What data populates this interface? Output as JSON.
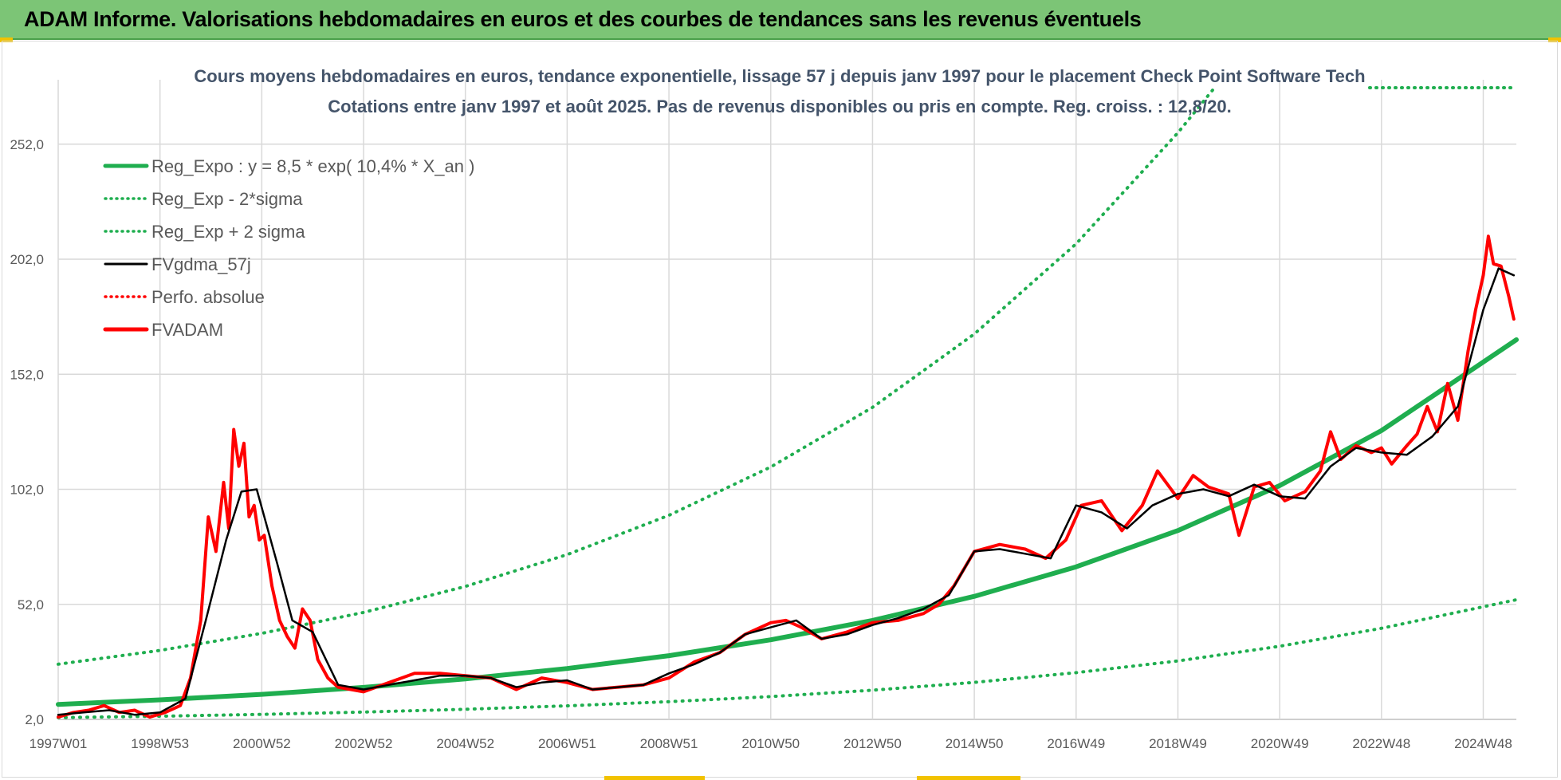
{
  "header": {
    "title": "ADAM Informe. Valorisations hebdomadaires en euros et des courbes de tendances sans les revenus éventuels"
  },
  "colors": {
    "header_bg": "#7cc576",
    "accent_yellow": "#f2c200",
    "reg_green": "#1fae4f",
    "fvgdma_black": "#000000",
    "fvadam_red": "#ff0000"
  },
  "chart_data": {
    "type": "line",
    "subtitle_line1": "Cours moyens hebdomadaires en euros, tendance exponentielle, lissage 57 j depuis janv 1997  pour le placement Check Point Software Tech",
    "subtitle_line2": "Cotations entre janv 1997 et août 2025.  Pas de revenus disponibles ou pris en compte. Reg. croiss. : 12,8/20.",
    "ylim": [
      2,
      280
    ],
    "y_ticks": [
      2.0,
      52.0,
      102.0,
      152.0,
      202.0,
      252.0
    ],
    "y_tick_labels": [
      "2,0",
      "52,0",
      "102,0",
      "152,0",
      "202,0",
      "252,0"
    ],
    "xlim": [
      1997.0,
      2025.65
    ],
    "x_ticks": [
      1997.0,
      1999.0,
      2001.0,
      2003.0,
      2005.0,
      2007.0,
      2009.0,
      2011.0,
      2013.0,
      2015.0,
      2017.0,
      2019.0,
      2021.0,
      2023.0,
      2025.0
    ],
    "x_tick_labels": [
      "1997W01",
      "1998W53",
      "2000W52",
      "2002W52",
      "2004W52",
      "2006W51",
      "2008W51",
      "2010W50",
      "2012W50",
      "2014W50",
      "2016W49",
      "2018W49",
      "2020W49",
      "2022W48",
      "2024W48"
    ],
    "legend": {
      "position": "top-left",
      "entries": [
        {
          "label": "Reg_Expo : y = 8,5 * exp( 10,4% *  X_an )",
          "color": "#1fae4f",
          "style": "solid"
        },
        {
          "label": "Reg_Exp - 2*sigma",
          "color": "#1fae4f",
          "style": "dotted"
        },
        {
          "label": "Reg_Exp + 2 sigma",
          "color": "#1fae4f",
          "style": "dotted"
        },
        {
          "label": "FVgdma_57j",
          "color": "#000000",
          "style": "solid"
        },
        {
          "label": "Perfo. absolue",
          "color": "#ff0000",
          "style": "dotted"
        },
        {
          "label": "FVADAM",
          "color": "#ff0000",
          "style": "solid"
        }
      ]
    },
    "series": [
      {
        "name": "Reg_Expo : y = 8,5 * exp( 10,4% *  X_an )",
        "x": [
          1997.0,
          1999.0,
          2001.0,
          2003.0,
          2005.0,
          2007.0,
          2009.0,
          2011.0,
          2013.0,
          2015.0,
          2017.0,
          2019.0,
          2021.0,
          2023.0,
          2025.65
        ],
        "values": [
          8.5,
          10.5,
          12.9,
          15.9,
          19.6,
          24.1,
          29.7,
          36.6,
          45.0,
          55.5,
          68.3,
          84.1,
          103.6,
          127.5,
          167.0
        ]
      },
      {
        "name": "Reg_Exp - 2*sigma",
        "x": [
          1997.0,
          1999.0,
          2001.0,
          2003.0,
          2005.0,
          2007.0,
          2009.0,
          2011.0,
          2013.0,
          2015.0,
          2017.0,
          2019.0,
          2021.0,
          2023.0,
          2025.65
        ],
        "values": [
          2.8,
          3.4,
          4.2,
          5.2,
          6.4,
          7.9,
          9.7,
          11.9,
          14.7,
          18.1,
          22.3,
          27.4,
          33.8,
          41.6,
          54.0
        ]
      },
      {
        "name": "Reg_Exp + 2 sigma",
        "x": [
          1997.0,
          1999.0,
          2001.0,
          2003.0,
          2005.0,
          2007.0,
          2009.0,
          2011.0,
          2013.0,
          2015.0,
          2017.0,
          2019.0,
          2019.7
        ],
        "values": [
          26.0,
          32.0,
          39.4,
          48.5,
          59.8,
          73.6,
          90.7,
          111.7,
          137.6,
          169.5,
          208.7,
          257.0,
          276.0
        ]
      },
      {
        "name": "FVgdma_57j",
        "x": [
          1997.0,
          1997.5,
          1998.0,
          1998.5,
          1999.0,
          1999.5,
          1999.9,
          2000.3,
          2000.6,
          2000.9,
          2001.3,
          2001.6,
          2002.0,
          2002.5,
          2003.0,
          2003.5,
          2004.0,
          2004.5,
          2005.0,
          2005.5,
          2006.0,
          2006.5,
          2007.0,
          2007.5,
          2008.0,
          2008.5,
          2009.0,
          2009.5,
          2010.0,
          2010.5,
          2011.0,
          2011.5,
          2012.0,
          2012.5,
          2013.0,
          2013.5,
          2014.0,
          2014.5,
          2015.0,
          2015.5,
          2016.0,
          2016.5,
          2017.0,
          2017.5,
          2018.0,
          2018.5,
          2019.0,
          2019.5,
          2020.0,
          2020.5,
          2021.0,
          2021.5,
          2022.0,
          2022.5,
          2023.0,
          2023.5,
          2024.0,
          2024.5,
          2025.0,
          2025.3,
          2025.6
        ],
        "values": [
          4,
          5,
          6,
          4,
          5,
          11,
          45,
          80,
          101,
          102,
          70,
          45,
          40,
          17,
          15,
          17,
          19,
          21,
          21,
          20,
          16,
          18,
          19,
          15,
          16,
          17,
          22,
          26,
          31,
          39,
          42,
          45,
          37,
          39,
          43,
          46,
          50,
          56,
          75,
          76,
          74,
          72,
          95,
          92,
          85,
          95,
          100,
          102,
          99,
          104,
          99,
          98,
          112,
          120,
          118,
          117,
          125,
          138,
          180,
          198,
          195
        ]
      },
      {
        "name": "FVADAM",
        "x": [
          1997.0,
          1997.3,
          1997.6,
          1997.9,
          1998.2,
          1998.5,
          1998.8,
          1999.1,
          1999.4,
          1999.6,
          1999.8,
          1999.95,
          2000.1,
          2000.25,
          2000.35,
          2000.45,
          2000.55,
          2000.65,
          2000.75,
          2000.85,
          2000.95,
          2001.05,
          2001.2,
          2001.35,
          2001.5,
          2001.65,
          2001.8,
          2001.95,
          2002.1,
          2002.3,
          2002.5,
          2003.0,
          2003.5,
          2004.0,
          2004.5,
          2005.0,
          2005.5,
          2006.0,
          2006.5,
          2007.0,
          2007.5,
          2008.0,
          2008.5,
          2009.0,
          2009.5,
          2010.0,
          2010.5,
          2011.0,
          2011.3,
          2011.6,
          2012.0,
          2012.5,
          2013.0,
          2013.5,
          2014.0,
          2014.3,
          2014.6,
          2015.0,
          2015.5,
          2016.0,
          2016.4,
          2016.8,
          2017.1,
          2017.5,
          2017.9,
          2018.3,
          2018.6,
          2019.0,
          2019.3,
          2019.6,
          2020.0,
          2020.2,
          2020.5,
          2020.8,
          2021.1,
          2021.5,
          2021.8,
          2022.0,
          2022.2,
          2022.5,
          2022.8,
          2023.0,
          2023.2,
          2023.5,
          2023.7,
          2023.9,
          2024.1,
          2024.3,
          2024.5,
          2024.7,
          2024.85,
          2025.0,
          2025.1,
          2025.2,
          2025.35,
          2025.5,
          2025.6
        ],
        "values": [
          3,
          5,
          6,
          8,
          5,
          6,
          3,
          5,
          8,
          20,
          45,
          90,
          75,
          105,
          85,
          128,
          112,
          122,
          90,
          95,
          80,
          82,
          60,
          45,
          38,
          33,
          50,
          45,
          28,
          20,
          16,
          14,
          18,
          22,
          22,
          21,
          20,
          15,
          20,
          18,
          15,
          16,
          17,
          20,
          27,
          31,
          39,
          44,
          45,
          42,
          37,
          40,
          44,
          45,
          48,
          52,
          60,
          75,
          78,
          76,
          72,
          80,
          95,
          97,
          84,
          95,
          110,
          98,
          108,
          103,
          100,
          82,
          103,
          105,
          97,
          101,
          110,
          127,
          115,
          121,
          118,
          120,
          113,
          121,
          126,
          138,
          127,
          148,
          132,
          162,
          180,
          195,
          212,
          200,
          199,
          186,
          176
        ]
      }
    ],
    "grid": true
  }
}
